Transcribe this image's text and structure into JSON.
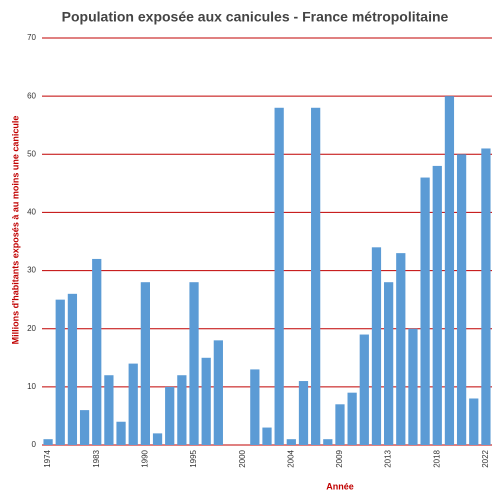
{
  "chart_data": {
    "type": "bar",
    "title": "Population  exposée aux canicules - France métropolitaine",
    "x_label": "Année",
    "y_label": "Millions d'habitants exposés à au moins une canicule",
    "categories": [
      "1974",
      null,
      null,
      null,
      "1983",
      null,
      null,
      null,
      "1990",
      null,
      null,
      null,
      "1995",
      null,
      null,
      null,
      "2000",
      null,
      null,
      null,
      "2004",
      null,
      null,
      null,
      "2009",
      null,
      null,
      null,
      "2013",
      null,
      null,
      null,
      "2018",
      null,
      null,
      null,
      "2022"
    ],
    "values": [
      1,
      25,
      26,
      6,
      32,
      12,
      4,
      14,
      28,
      2,
      10,
      12,
      28,
      15,
      18,
      0,
      0,
      13,
      3,
      58,
      1,
      11,
      58,
      1,
      7,
      9,
      19,
      34,
      28,
      33,
      20,
      46,
      48,
      60,
      50,
      8,
      51
    ],
    "color": "#5b9bd5",
    "grid_color": "#c00000",
    "ylim": [
      0,
      70
    ],
    "yticks": [
      0,
      10,
      20,
      30,
      40,
      50,
      60,
      70
    ],
    "grid": true
  }
}
